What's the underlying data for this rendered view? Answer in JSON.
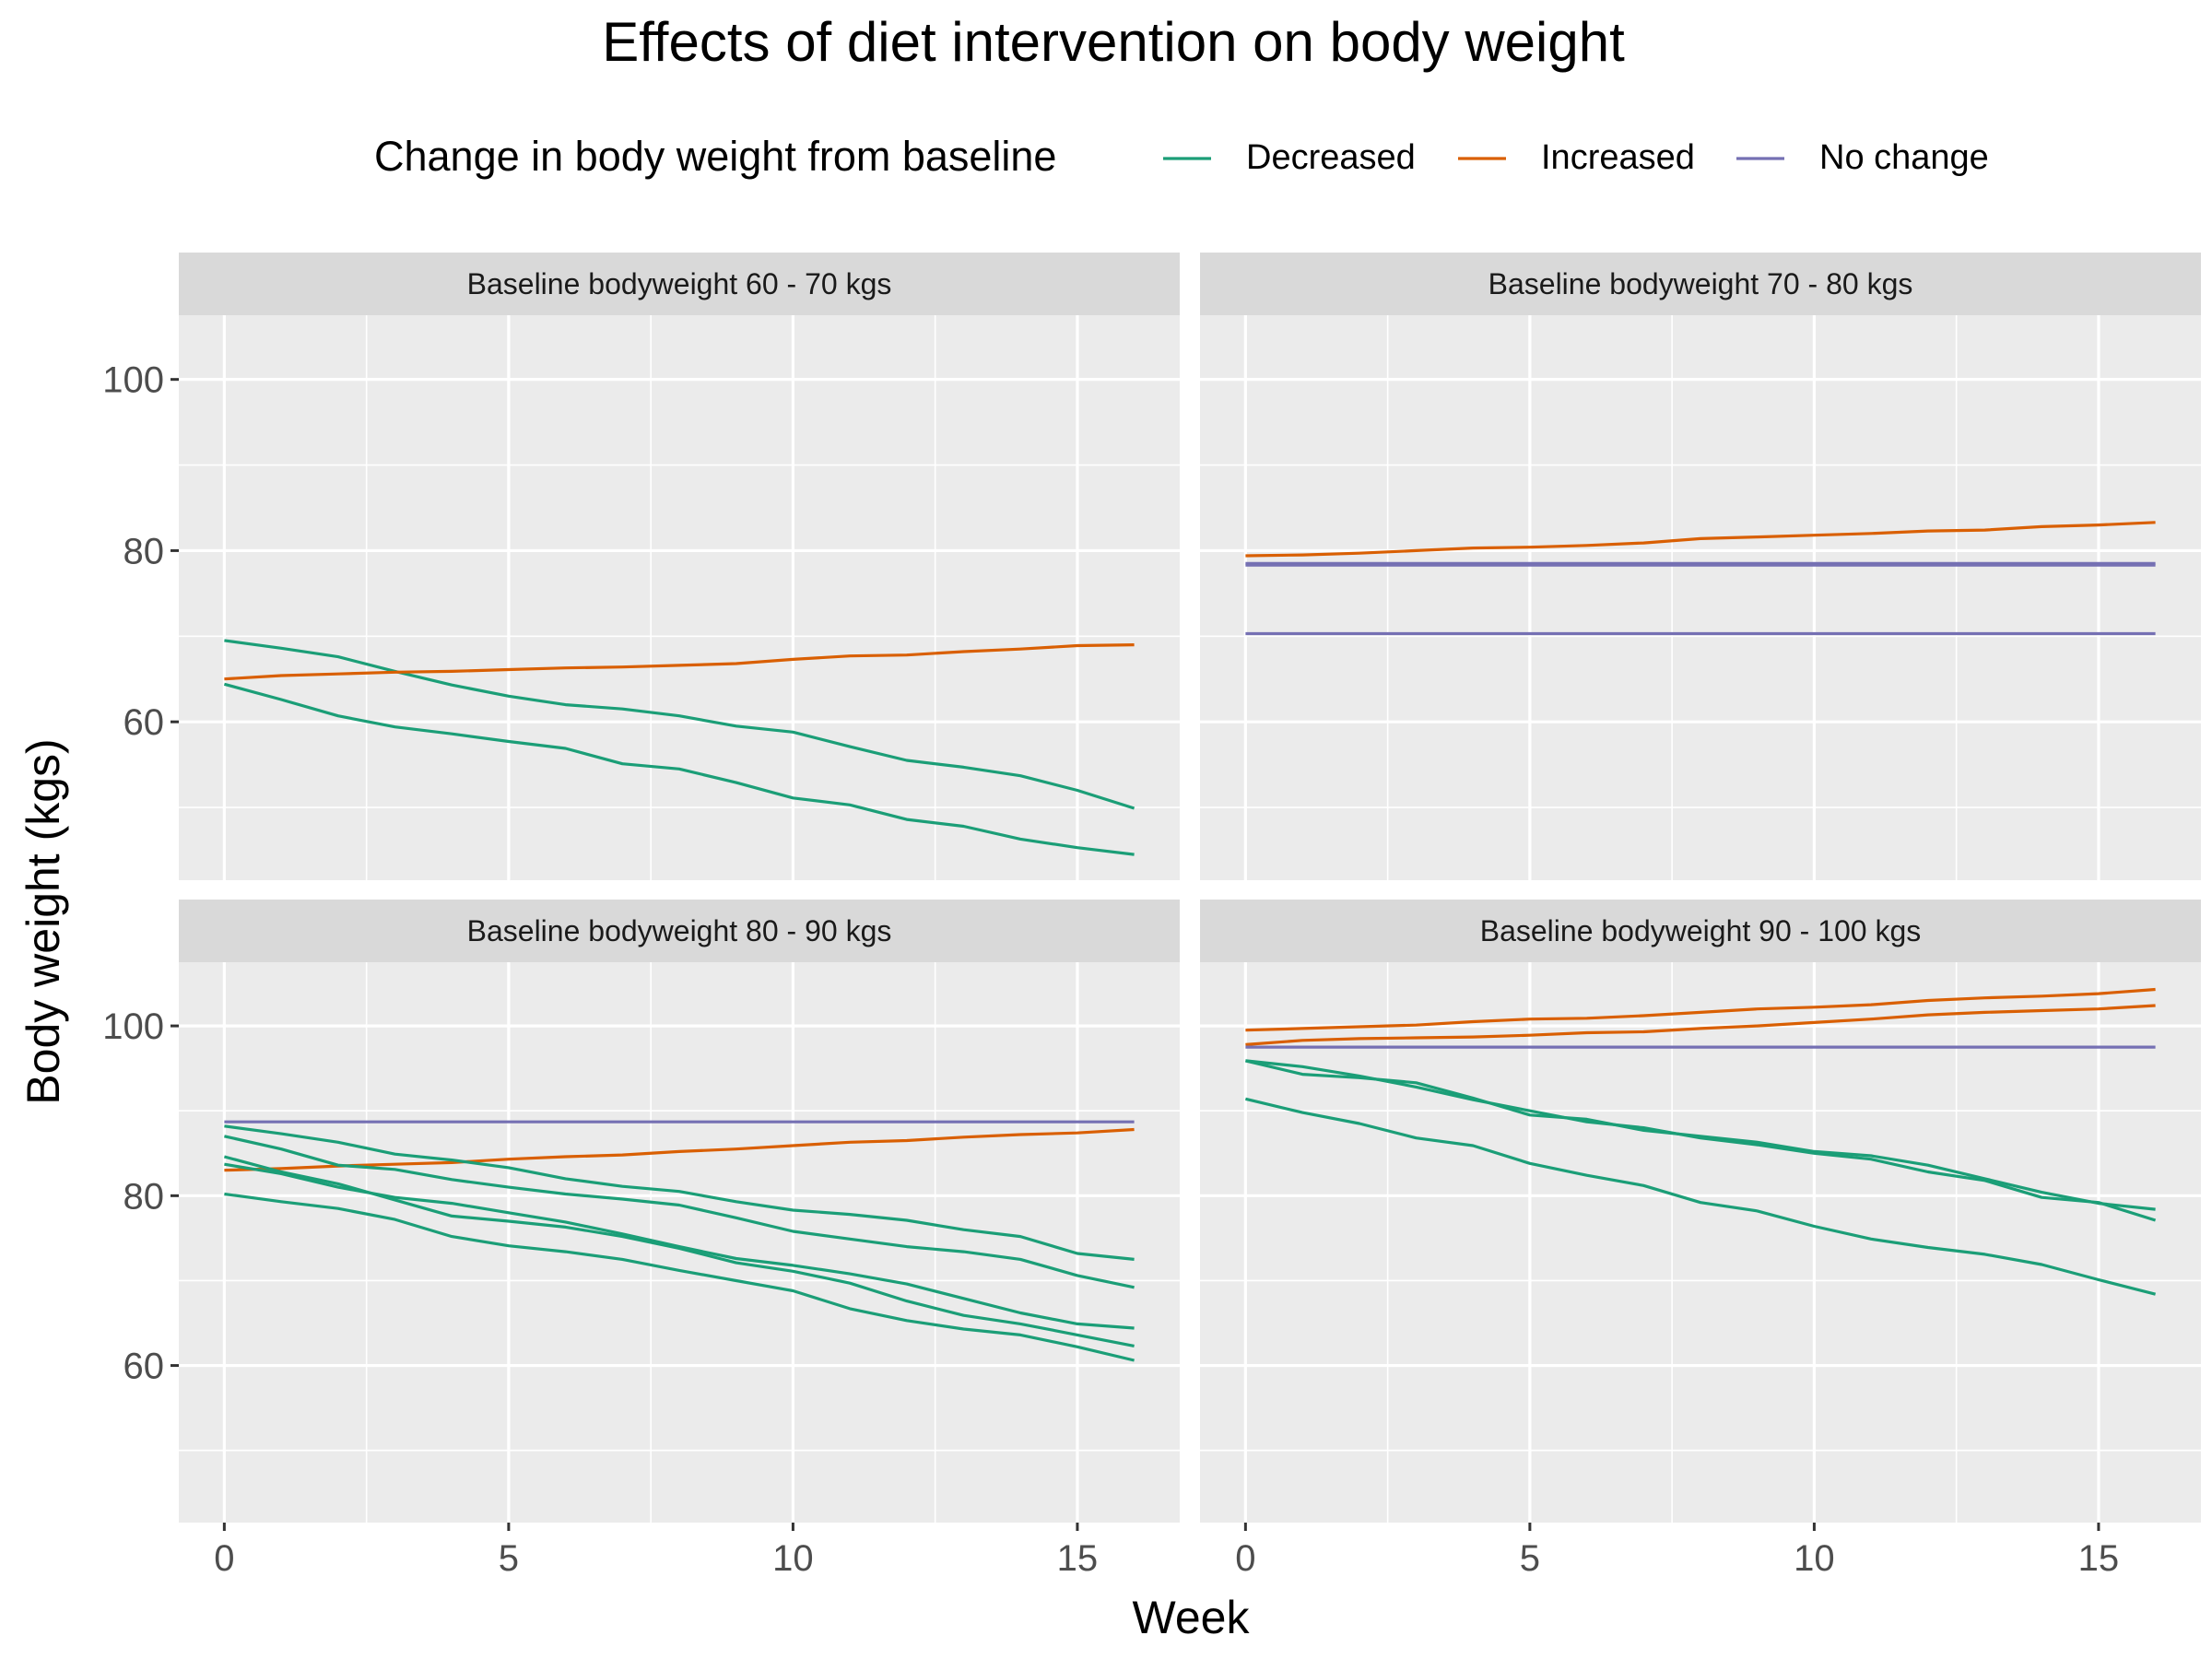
{
  "chart_data": {
    "type": "line",
    "title": "Effects of diet intervention on body weight",
    "xlabel": "Week",
    "ylabel": "Body weight (kgs)",
    "xlim": [
      -0.8,
      16.8
    ],
    "ylim": [
      41.5,
      107.5
    ],
    "x_ticks": [
      0,
      5,
      10,
      15
    ],
    "y_ticks": [
      60,
      80,
      100
    ],
    "grid": true,
    "legend": {
      "title": "Change in body weight from baseline",
      "position": "top",
      "entries": [
        {
          "label": "Decreased",
          "color": "#1B9E77"
        },
        {
          "label": "Increased",
          "color": "#D95F02"
        },
        {
          "label": "No change",
          "color": "#7570B3"
        }
      ]
    },
    "x": [
      0,
      1,
      2,
      3,
      4,
      5,
      6,
      7,
      8,
      9,
      10,
      11,
      12,
      13,
      14,
      15,
      16
    ],
    "panels": [
      {
        "label": "Baseline bodyweight 60 - 70 kgs",
        "series": [
          {
            "group": "Decreased",
            "values": [
              69.5,
              68.6,
              67.6,
              65.9,
              64.3,
              63.0,
              62.0,
              61.5,
              60.7,
              59.5,
              58.8,
              57.1,
              55.5,
              54.7,
              53.7,
              52.0,
              49.9
            ]
          },
          {
            "group": "Decreased",
            "values": [
              64.4,
              62.6,
              60.7,
              59.4,
              58.6,
              57.7,
              56.9,
              55.1,
              54.5,
              52.9,
              51.1,
              50.3,
              48.6,
              47.8,
              46.3,
              45.3,
              44.5
            ]
          },
          {
            "group": "Increased",
            "values": [
              65.0,
              65.4,
              65.6,
              65.8,
              65.9,
              66.1,
              66.3,
              66.4,
              66.6,
              66.8,
              67.3,
              67.7,
              67.8,
              68.2,
              68.5,
              68.9,
              69.0
            ]
          }
        ]
      },
      {
        "label": "Baseline bodyweight 70 - 80 kgs",
        "series": [
          {
            "group": "Increased",
            "values": [
              79.4,
              79.5,
              79.7,
              80.0,
              80.3,
              80.4,
              80.6,
              80.9,
              81.4,
              81.6,
              81.8,
              82.0,
              82.3,
              82.4,
              82.8,
              83.0,
              83.3
            ]
          },
          {
            "group": "No change",
            "values": [
              78.5,
              78.5,
              78.5,
              78.5,
              78.5,
              78.5,
              78.5,
              78.5,
              78.5,
              78.5,
              78.5,
              78.5,
              78.5,
              78.5,
              78.5,
              78.5,
              78.5
            ]
          },
          {
            "group": "No change",
            "values": [
              78.3,
              78.3,
              78.3,
              78.3,
              78.3,
              78.3,
              78.3,
              78.3,
              78.3,
              78.3,
              78.3,
              78.3,
              78.3,
              78.3,
              78.3,
              78.3,
              78.3
            ]
          },
          {
            "group": "No change",
            "values": [
              70.3,
              70.3,
              70.3,
              70.3,
              70.3,
              70.3,
              70.3,
              70.3,
              70.3,
              70.3,
              70.3,
              70.3,
              70.3,
              70.3,
              70.3,
              70.3,
              70.3
            ]
          }
        ]
      },
      {
        "label": "Baseline bodyweight 80 - 90 kgs",
        "series": [
          {
            "group": "No change",
            "values": [
              88.7,
              88.7,
              88.7,
              88.7,
              88.7,
              88.7,
              88.7,
              88.7,
              88.7,
              88.7,
              88.7,
              88.7,
              88.7,
              88.7,
              88.7,
              88.7,
              88.7
            ]
          },
          {
            "group": "Increased",
            "values": [
              83.0,
              83.2,
              83.5,
              83.7,
              83.9,
              84.3,
              84.6,
              84.8,
              85.2,
              85.5,
              85.9,
              86.3,
              86.5,
              86.9,
              87.2,
              87.4,
              87.8
            ]
          },
          {
            "group": "Decreased",
            "values": [
              88.2,
              87.3,
              86.3,
              84.9,
              84.2,
              83.3,
              82.0,
              81.1,
              80.5,
              79.3,
              78.3,
              77.8,
              77.1,
              76.0,
              75.2,
              73.2,
              72.5
            ]
          },
          {
            "group": "Decreased",
            "values": [
              87.0,
              85.5,
              83.6,
              83.1,
              81.9,
              81.0,
              80.2,
              79.6,
              78.9,
              77.4,
              75.8,
              74.9,
              74.0,
              73.4,
              72.5,
              70.6,
              69.2
            ]
          },
          {
            "group": "Decreased",
            "values": [
              84.6,
              82.8,
              81.4,
              79.5,
              77.6,
              77.0,
              76.3,
              75.2,
              73.8,
              72.1,
              71.1,
              69.7,
              67.6,
              65.9,
              64.9,
              63.6,
              62.3
            ]
          },
          {
            "group": "Decreased",
            "values": [
              83.7,
              82.6,
              81.0,
              79.8,
              79.1,
              78.0,
              76.9,
              75.5,
              74.0,
              72.6,
              71.8,
              70.8,
              69.6,
              67.9,
              66.2,
              64.9,
              64.4
            ]
          },
          {
            "group": "Decreased",
            "values": [
              80.2,
              79.3,
              78.5,
              77.2,
              75.2,
              74.1,
              73.4,
              72.5,
              71.2,
              70.0,
              68.8,
              66.7,
              65.3,
              64.3,
              63.6,
              62.2,
              60.6
            ]
          }
        ]
      },
      {
        "label": "Baseline bodyweight 90 - 100 kgs",
        "series": [
          {
            "group": "Increased",
            "values": [
              99.5,
              99.7,
              99.9,
              100.1,
              100.5,
              100.8,
              100.9,
              101.2,
              101.6,
              102.0,
              102.2,
              102.5,
              103.0,
              103.3,
              103.5,
              103.8,
              104.3
            ]
          },
          {
            "group": "Increased",
            "values": [
              97.8,
              98.3,
              98.5,
              98.6,
              98.7,
              98.9,
              99.2,
              99.3,
              99.7,
              100.0,
              100.4,
              100.8,
              101.3,
              101.6,
              101.8,
              102.0,
              102.4
            ]
          },
          {
            "group": "No change",
            "values": [
              97.5,
              97.5,
              97.5,
              97.5,
              97.5,
              97.5,
              97.5,
              97.5,
              97.5,
              97.5,
              97.5,
              97.5,
              97.5,
              97.5,
              97.5,
              97.5,
              97.5
            ]
          },
          {
            "group": "Decreased",
            "values": [
              95.9,
              94.3,
              93.9,
              93.3,
              91.5,
              89.5,
              89.0,
              87.7,
              87.0,
              86.3,
              85.2,
              84.7,
              83.6,
              82.0,
              80.4,
              79.1,
              78.4
            ]
          },
          {
            "group": "Decreased",
            "values": [
              95.9,
              95.2,
              94.1,
              92.8,
              91.3,
              90.0,
              88.7,
              88.0,
              86.8,
              86.0,
              85.0,
              84.3,
              82.8,
              81.8,
              79.8,
              79.2,
              77.1
            ]
          },
          {
            "group": "Decreased",
            "values": [
              91.4,
              89.8,
              88.5,
              86.8,
              85.9,
              83.8,
              82.4,
              81.2,
              79.2,
              78.2,
              76.4,
              74.9,
              73.9,
              73.1,
              71.9,
              70.1,
              68.4
            ]
          }
        ]
      }
    ]
  }
}
